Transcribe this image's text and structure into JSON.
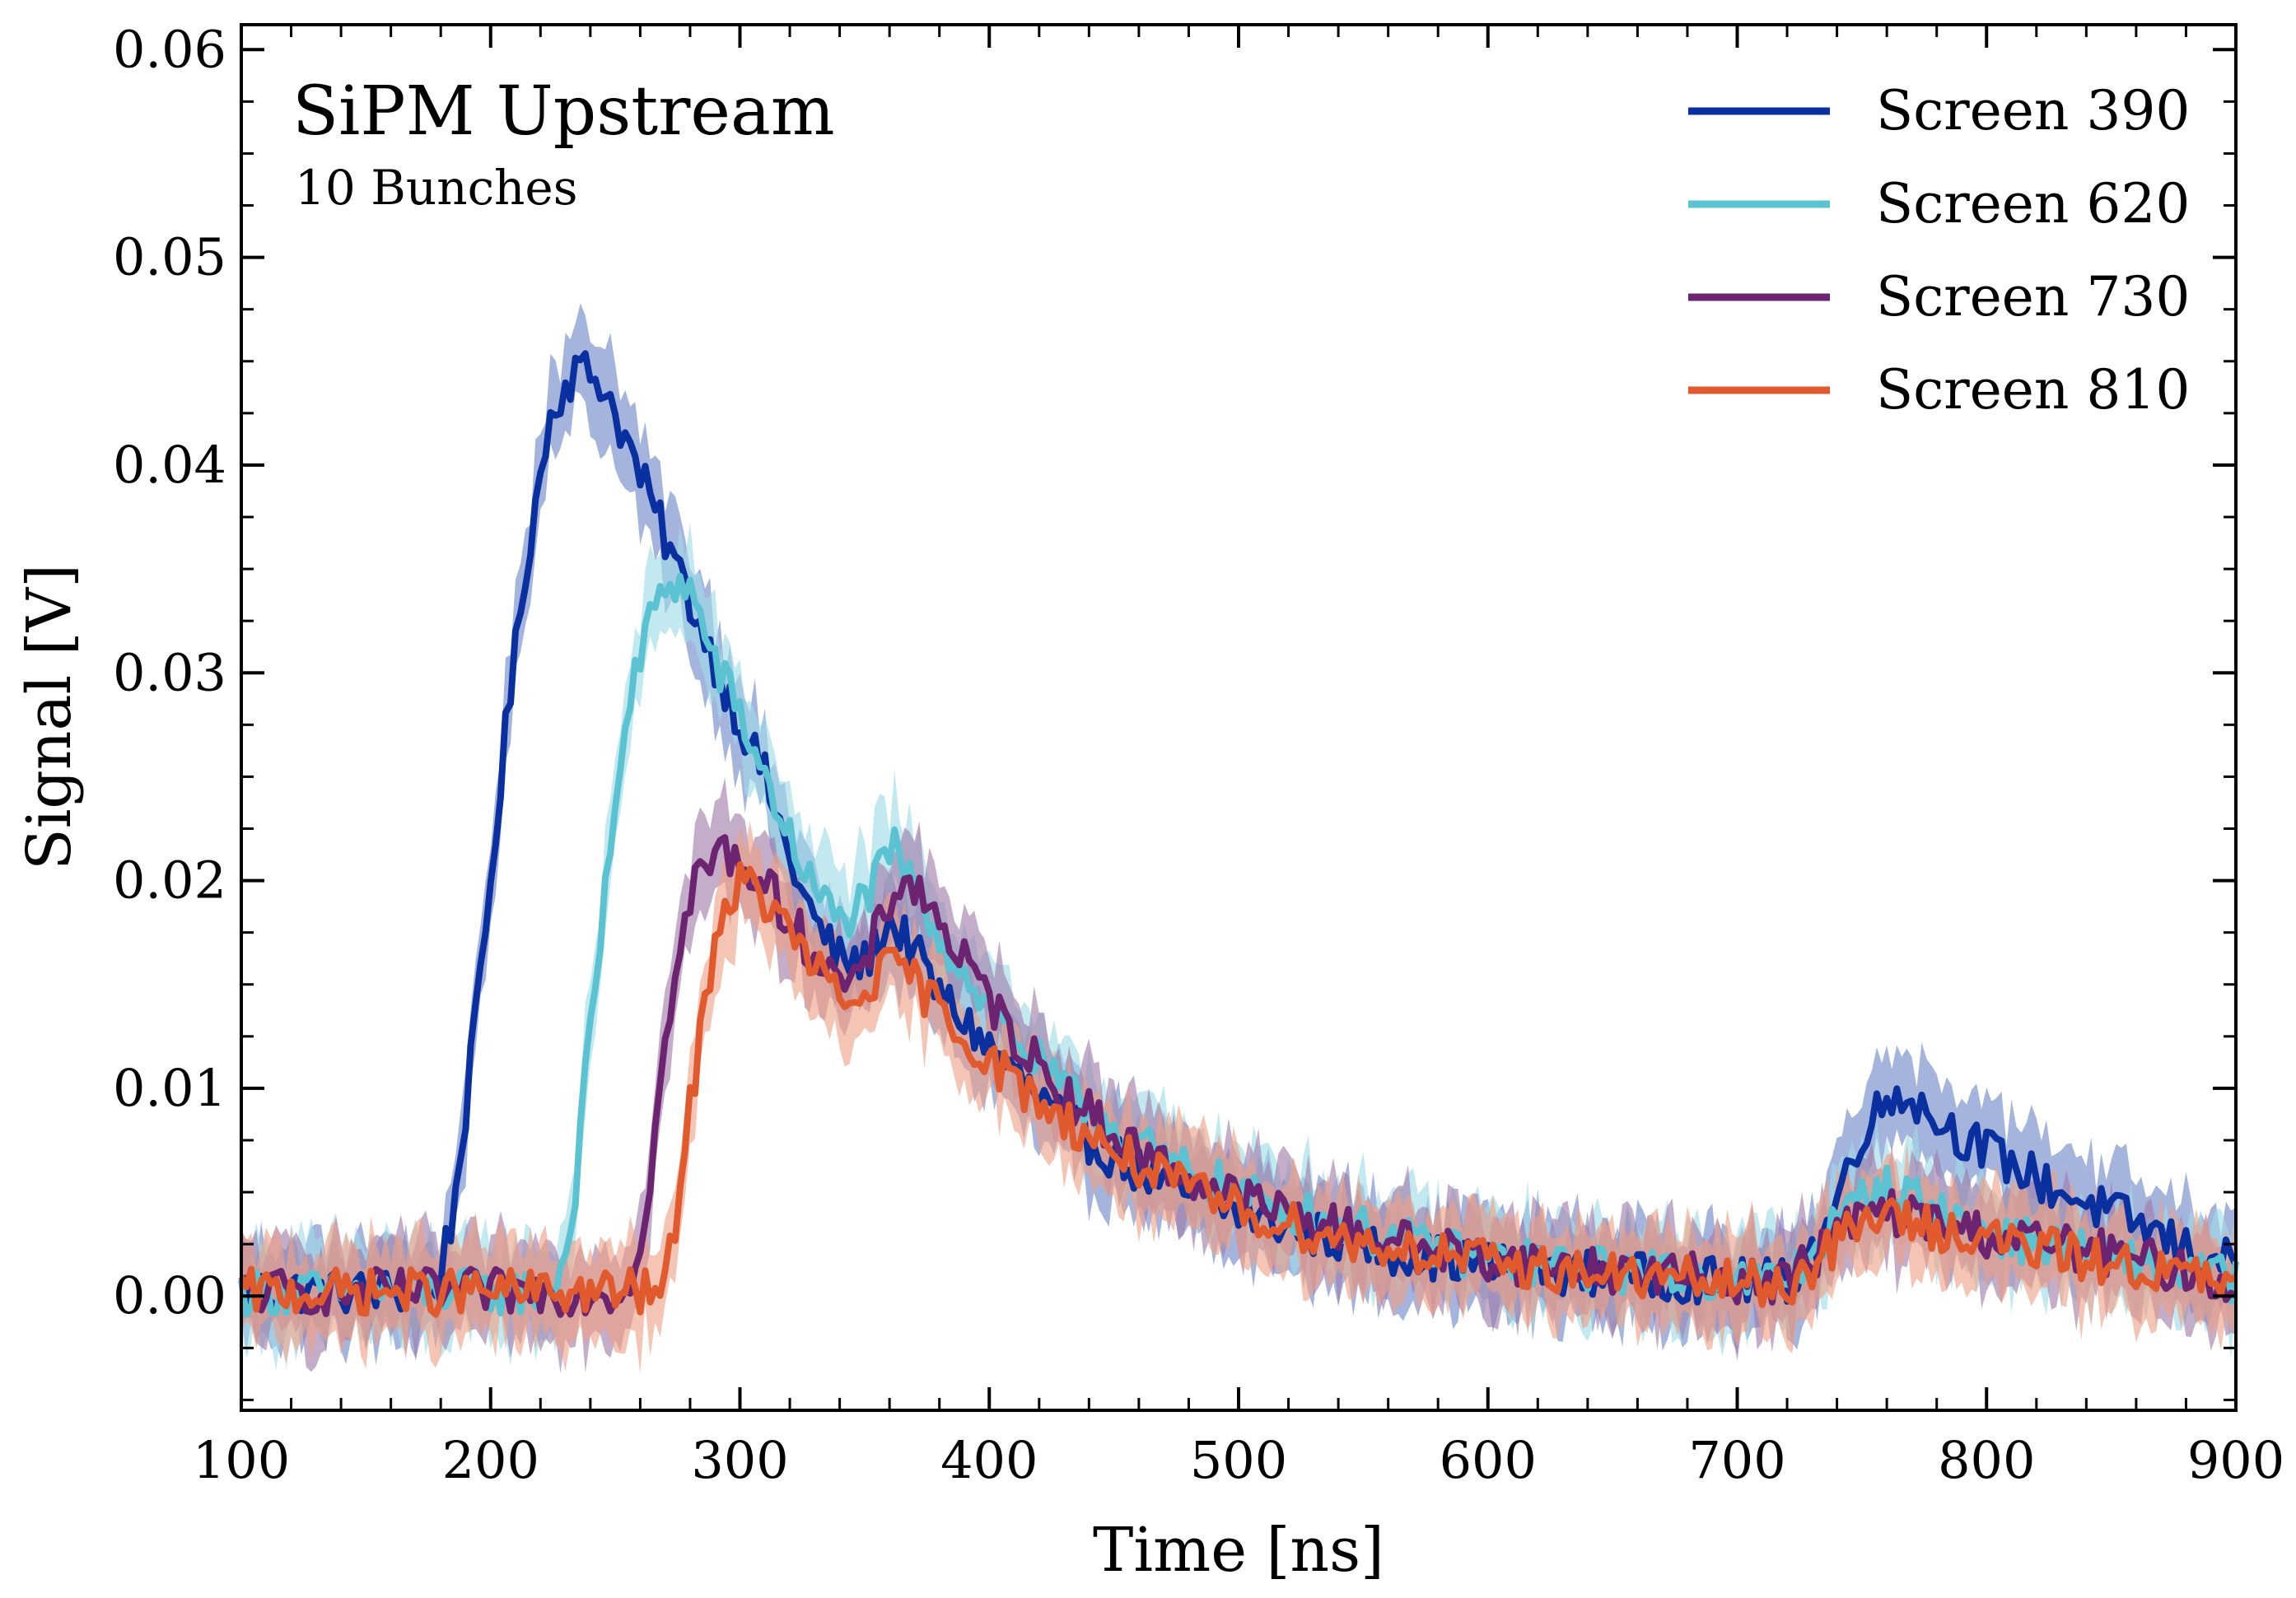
{
  "chart_data": {
    "type": "line",
    "title": "SiPM Upstream",
    "subtitle": "10 Bunches",
    "xlabel": "Time [ns]",
    "ylabel": "Signal [V]",
    "xlim": [
      100,
      900
    ],
    "ylim": [
      -0.0055,
      0.0612
    ],
    "xticks": [
      100,
      200,
      300,
      400,
      500,
      600,
      700,
      800,
      900
    ],
    "xtick_labels": [
      "100",
      "200",
      "300",
      "400",
      "500",
      "600",
      "700",
      "800",
      "900"
    ],
    "yticks": [
      0.0,
      0.01,
      0.02,
      0.03,
      0.04,
      0.05,
      0.06
    ],
    "ytick_labels": [
      "0.00",
      "0.01",
      "0.02",
      "0.03",
      "0.04",
      "0.05",
      "0.06"
    ],
    "legend_position": "top-right",
    "series": [
      {
        "name": "Screen 390",
        "color": "#0a2f9e",
        "band_color": "#6e86c8",
        "band_halfwidth": 0.0022,
        "noise": 0.0011,
        "points": [
          [
            100,
            0.0003
          ],
          [
            150,
            0.0002
          ],
          [
            178,
            0.0003
          ],
          [
            185,
            0.004
          ],
          [
            195,
            0.014
          ],
          [
            205,
            0.026
          ],
          [
            215,
            0.036
          ],
          [
            225,
            0.043
          ],
          [
            235,
            0.0447
          ],
          [
            245,
            0.044
          ],
          [
            255,
            0.041
          ],
          [
            265,
            0.038
          ],
          [
            275,
            0.035
          ],
          [
            285,
            0.032
          ],
          [
            295,
            0.029
          ],
          [
            310,
            0.025
          ],
          [
            320,
            0.021
          ],
          [
            330,
            0.018
          ],
          [
            340,
            0.0162
          ],
          [
            350,
            0.016
          ],
          [
            360,
            0.018
          ],
          [
            368,
            0.017
          ],
          [
            380,
            0.0145
          ],
          [
            400,
            0.012
          ],
          [
            420,
            0.0095
          ],
          [
            440,
            0.0075
          ],
          [
            460,
            0.006
          ],
          [
            480,
            0.0048
          ],
          [
            500,
            0.004
          ],
          [
            530,
            0.003
          ],
          [
            560,
            0.0022
          ],
          [
            600,
            0.0015
          ],
          [
            650,
            0.001
          ],
          [
            700,
            0.0007
          ],
          [
            720,
            0.0007
          ],
          [
            735,
            0.003
          ],
          [
            750,
            0.008
          ],
          [
            765,
            0.01
          ],
          [
            780,
            0.0085
          ],
          [
            800,
            0.007
          ],
          [
            830,
            0.005
          ],
          [
            860,
            0.0035
          ],
          [
            880,
            0.0023
          ],
          [
            900,
            0.0015
          ]
        ]
      },
      {
        "name": "Screen 620",
        "color": "#5bc2d2",
        "band_color": "#9edce6",
        "band_halfwidth": 0.0022,
        "noise": 0.0011,
        "points": [
          [
            100,
            0.0002
          ],
          [
            150,
            0.0002
          ],
          [
            200,
            0.0002
          ],
          [
            225,
            0.0002
          ],
          [
            232,
            0.003
          ],
          [
            242,
            0.015
          ],
          [
            252,
            0.026
          ],
          [
            262,
            0.032
          ],
          [
            272,
            0.0345
          ],
          [
            280,
            0.034
          ],
          [
            290,
            0.0305
          ],
          [
            300,
            0.028
          ],
          [
            310,
            0.025
          ],
          [
            320,
            0.022
          ],
          [
            330,
            0.0195
          ],
          [
            340,
            0.018
          ],
          [
            350,
            0.019
          ],
          [
            362,
            0.0215
          ],
          [
            375,
            0.0185
          ],
          [
            390,
            0.0155
          ],
          [
            410,
            0.0125
          ],
          [
            430,
            0.0098
          ],
          [
            450,
            0.0082
          ],
          [
            470,
            0.0065
          ],
          [
            490,
            0.0055
          ],
          [
            510,
            0.0045
          ],
          [
            540,
            0.0035
          ],
          [
            570,
            0.0025
          ],
          [
            600,
            0.0018
          ],
          [
            650,
            0.0012
          ],
          [
            700,
            0.0008
          ],
          [
            720,
            0.0007
          ],
          [
            740,
            0.0035
          ],
          [
            755,
            0.0053
          ],
          [
            770,
            0.0048
          ],
          [
            790,
            0.0035
          ],
          [
            820,
            0.0025
          ],
          [
            850,
            0.0018
          ],
          [
            900,
            0.0008
          ]
        ]
      },
      {
        "name": "Screen 730",
        "color": "#6c2470",
        "band_color": "#a07aa8",
        "band_halfwidth": 0.0022,
        "noise": 0.0011,
        "points": [
          [
            100,
            0.0002
          ],
          [
            200,
            0.0002
          ],
          [
            255,
            0.0002
          ],
          [
            262,
            0.004
          ],
          [
            272,
            0.014
          ],
          [
            282,
            0.02
          ],
          [
            292,
            0.0215
          ],
          [
            305,
            0.0205
          ],
          [
            315,
            0.019
          ],
          [
            330,
            0.0165
          ],
          [
            345,
            0.0145
          ],
          [
            355,
            0.0175
          ],
          [
            365,
            0.0203
          ],
          [
            375,
            0.019
          ],
          [
            390,
            0.016
          ],
          [
            410,
            0.0125
          ],
          [
            430,
            0.0098
          ],
          [
            450,
            0.0078
          ],
          [
            470,
            0.0063
          ],
          [
            490,
            0.0052
          ],
          [
            510,
            0.0043
          ],
          [
            540,
            0.0033
          ],
          [
            570,
            0.0025
          ],
          [
            600,
            0.0018
          ],
          [
            650,
            0.0012
          ],
          [
            700,
            0.0008
          ],
          [
            720,
            0.0007
          ],
          [
            740,
            0.003
          ],
          [
            755,
            0.0042
          ],
          [
            770,
            0.0038
          ],
          [
            800,
            0.003
          ],
          [
            840,
            0.0022
          ],
          [
            870,
            0.0015
          ],
          [
            900,
            0.0005
          ]
        ]
      },
      {
        "name": "Screen 810",
        "color": "#e05a2e",
        "band_color": "#ee9f86",
        "band_halfwidth": 0.0022,
        "noise": 0.0011,
        "points": [
          [
            100,
            0.0002
          ],
          [
            200,
            0.0002
          ],
          [
            270,
            0.0002
          ],
          [
            280,
            0.009
          ],
          [
            290,
            0.0175
          ],
          [
            300,
            0.02
          ],
          [
            310,
            0.019
          ],
          [
            320,
            0.0175
          ],
          [
            335,
            0.015
          ],
          [
            345,
            0.0138
          ],
          [
            355,
            0.0155
          ],
          [
            365,
            0.0158
          ],
          [
            375,
            0.0145
          ],
          [
            390,
            0.0125
          ],
          [
            410,
            0.0103
          ],
          [
            430,
            0.0085
          ],
          [
            450,
            0.007
          ],
          [
            470,
            0.0056
          ],
          [
            490,
            0.0046
          ],
          [
            510,
            0.0038
          ],
          [
            540,
            0.0028
          ],
          [
            570,
            0.0022
          ],
          [
            600,
            0.0016
          ],
          [
            650,
            0.001
          ],
          [
            700,
            0.0006
          ],
          [
            720,
            0.0005
          ],
          [
            740,
            0.0025
          ],
          [
            755,
            0.004
          ],
          [
            770,
            0.0035
          ],
          [
            800,
            0.0028
          ],
          [
            840,
            0.0018
          ],
          [
            870,
            0.0012
          ],
          [
            900,
            0.0005
          ]
        ]
      }
    ]
  }
}
